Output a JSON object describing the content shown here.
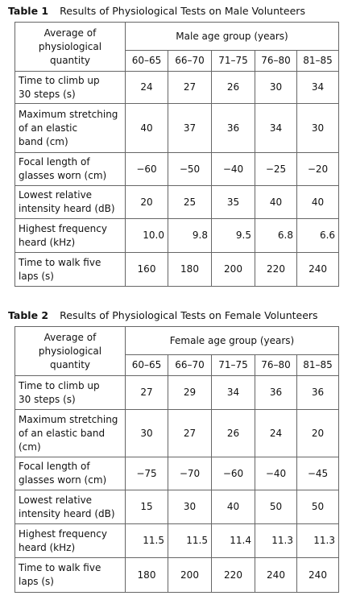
{
  "table1": {
    "label": "Table 1",
    "title": "Results of Physiological Tests on Male Volunteers",
    "header": {
      "quantity": "Average of\nphysiological\nquantity",
      "group": "Male age group (years)",
      "ages": [
        "60–65",
        "66–70",
        "71–75",
        "76–80",
        "81–85"
      ]
    },
    "rows": [
      {
        "label": "Time to climb up\n30 steps (s)",
        "values": [
          "24",
          "27",
          "26",
          "30",
          "34"
        ]
      },
      {
        "label": "Maximum stretching\nof an elastic\nband (cm)",
        "values": [
          "40",
          "37",
          "36",
          "34",
          "30"
        ]
      },
      {
        "label": "Focal length of\nglasses worn (cm)",
        "values": [
          "−60",
          "−50",
          "−40",
          "−25",
          "−20"
        ]
      },
      {
        "label": "Lowest relative\nintensity heard (dB)",
        "values": [
          "20",
          "25",
          "35",
          "40",
          "40"
        ]
      },
      {
        "label": "Highest frequency\nheard (kHz)",
        "values": [
          "10.0",
          "9.8",
          "9.5",
          "6.8",
          "6.6"
        ]
      },
      {
        "label": "Time to walk five\nlaps (s)",
        "values": [
          "160",
          "180",
          "200",
          "220",
          "240"
        ]
      }
    ]
  },
  "table2": {
    "label": "Table 2",
    "title": "Results of Physiological Tests on Female Volunteers",
    "header": {
      "quantity": "Average of\nphysiological\nquantity",
      "group": "Female age group (years)",
      "ages": [
        "60–65",
        "66–70",
        "71–75",
        "76–80",
        "81–85"
      ]
    },
    "rows": [
      {
        "label": "Time to climb up\n30 steps (s)",
        "values": [
          "27",
          "29",
          "34",
          "36",
          "36"
        ]
      },
      {
        "label": "Maximum stretching\nof an elastic band\n(cm)",
        "values": [
          "30",
          "27",
          "26",
          "24",
          "20"
        ]
      },
      {
        "label": "Focal length of\nglasses worn (cm)",
        "values": [
          "−75",
          "−70",
          "−60",
          "−40",
          "−45"
        ]
      },
      {
        "label": "Lowest relative\nintensity heard (dB)",
        "values": [
          "15",
          "30",
          "40",
          "50",
          "50"
        ]
      },
      {
        "label": "Highest frequency\nheard (kHz)",
        "values": [
          "11.5",
          "11.5",
          "11.4",
          "11.3",
          "11.3"
        ]
      },
      {
        "label": "Time to walk five\nlaps (s)",
        "values": [
          "180",
          "200",
          "220",
          "240",
          "240"
        ]
      }
    ]
  }
}
